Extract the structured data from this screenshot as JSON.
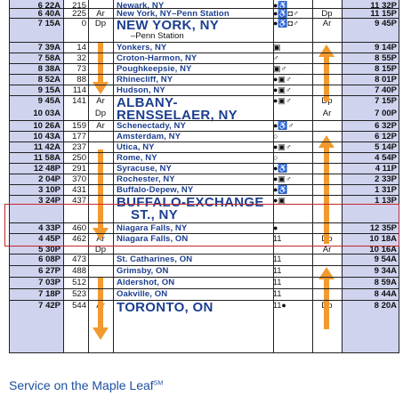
{
  "caption": {
    "text": "Service on the Maple Leaf",
    "mark": "SM"
  },
  "rows": [
    {
      "time_left": "6 22A",
      "mile": "215",
      "ad_left": "",
      "station": "Newark, NY",
      "sub": "",
      "svc": "●♿",
      "ad_right": "",
      "time_right": "11 32P",
      "h": 9
    },
    {
      "time_left": "6 40A",
      "mile": "225",
      "ad_left": "Ar",
      "station": "New York, NY–Penn Station",
      "sub": "",
      "svc": "●♿◘♂",
      "ad_right": "Dp",
      "time_right": "11 15P",
      "h": 11
    },
    {
      "time_left": "7 15A",
      "mile": "0",
      "ad_left": "Dp",
      "station": "NEW YORK, NY",
      "sub": "–Penn Station",
      "svc": "●♿◘♂",
      "ad_right": "Ar",
      "time_right": "9 45P",
      "h": 27,
      "big": true
    },
    {
      "time_left": "7 39A",
      "mile": "14",
      "ad_left": "",
      "station": "Yonkers, NY",
      "sub": "",
      "svc": "▣",
      "ad_right": "",
      "time_right": "9 14P",
      "h": 12
    },
    {
      "time_left": "7 58A",
      "mile": "32",
      "ad_left": "",
      "station": "Croton-Harmon, NY",
      "sub": "",
      "svc": "♂",
      "ad_right": "",
      "time_right": "8 55P",
      "h": 12
    },
    {
      "time_left": "8 38A",
      "mile": "73",
      "ad_left": "",
      "station": "Poughkeepsie, NY",
      "sub": "",
      "svc": "▣♂",
      "ad_right": "",
      "time_right": "8 15P",
      "h": 12
    },
    {
      "time_left": "8 52A",
      "mile": "88",
      "ad_left": "",
      "station": "Rhinecliff, NY",
      "sub": "",
      "svc": "●▣♂",
      "ad_right": "",
      "time_right": "8 01P",
      "h": 12
    },
    {
      "time_left": "9 15A",
      "mile": "114",
      "ad_left": "",
      "station": "Hudson, NY",
      "sub": "",
      "svc": "●▣♂",
      "ad_right": "",
      "time_right": "7 40P",
      "h": 12
    },
    {
      "time_left": "9 45A",
      "mile": "141",
      "ad_left": "Ar",
      "station": "ALBANY-",
      "sub": "",
      "svc": "●▣♂",
      "ad_right": "Dp",
      "time_right": "7 15P",
      "h": 14,
      "big": true
    },
    {
      "time_left": "10 03A",
      "mile": "",
      "ad_left": "Dp",
      "station": "RENSSELAER, NY",
      "sub": "",
      "svc": "",
      "ad_right": "Ar",
      "time_right": "7 00P",
      "h": 14,
      "big": true
    },
    {
      "time_left": "10 26A",
      "mile": "159",
      "ad_left": "Ar",
      "station": "Schenectady, NY",
      "sub": "",
      "svc": "●♿♂",
      "ad_right": "",
      "time_right": "6 32P",
      "h": 12
    },
    {
      "time_left": "10 43A",
      "mile": "177",
      "ad_left": "",
      "station": "Amsterdam, NY",
      "sub": "",
      "svc": "○",
      "ad_right": "",
      "time_right": "6 12P",
      "h": 12
    },
    {
      "time_left": "11 42A",
      "mile": "237",
      "ad_left": "",
      "station": "Utica, NY",
      "sub": "",
      "svc": "●▣♂",
      "ad_right": "",
      "time_right": "5 14P",
      "h": 12
    },
    {
      "time_left": "11 58A",
      "mile": "250",
      "ad_left": "",
      "station": "Rome, NY",
      "sub": "",
      "svc": "○",
      "ad_right": "",
      "time_right": "4 54P",
      "h": 12
    },
    {
      "time_left": "12 48P",
      "mile": "291",
      "ad_left": "",
      "station": "Syracuse, NY",
      "sub": "",
      "svc": "●♿",
      "ad_right": "",
      "time_right": "4 11P",
      "h": 12
    },
    {
      "time_left": "2 04P",
      "mile": "370",
      "ad_left": "",
      "station": "Rochester, NY",
      "sub": "",
      "svc": "●▣♂",
      "ad_right": "",
      "time_right": "2 33P",
      "h": 12
    },
    {
      "time_left": "3 10P",
      "mile": "431",
      "ad_left": "",
      "station": "Buffalo-Depew, NY",
      "sub": "",
      "svc": "●♿",
      "ad_right": "",
      "time_right": "1 31P",
      "h": 12
    },
    {
      "time_left": "3 24P",
      "mile": "437",
      "ad_left": "",
      "station": "BUFFALO-EXCHANGE",
      "sub": "ST., NY",
      "svc": "●▣",
      "ad_right": "",
      "time_right": "1 13P",
      "h": 31,
      "big": true
    },
    {
      "time_left": "4 33P",
      "mile": "460",
      "ad_left": "",
      "station": "Niagara Falls, NY",
      "sub": "",
      "svc": "●",
      "ad_right": "",
      "time_right": "12 35P",
      "h": 12
    },
    {
      "time_left": "4 45P",
      "mile": "462",
      "ad_left": "Ar",
      "station": "Niagara Falls, ON",
      "sub": "",
      "svc": "11",
      "ad_right": "Dp",
      "time_right": "10 18A",
      "h": 12
    },
    {
      "time_left": "5 30P",
      "mile": "",
      "ad_left": "Dp",
      "station": "",
      "sub": "",
      "svc": "",
      "ad_right": "Ar",
      "time_right": "10 16A",
      "h": 11
    },
    {
      "time_left": "6 08P",
      "mile": "473",
      "ad_left": "",
      "station": "St. Catharines, ON",
      "sub": "",
      "svc": "11",
      "ad_right": "",
      "time_right": "9 54A",
      "h": 13
    },
    {
      "time_left": "6 27P",
      "mile": "488",
      "ad_left": "",
      "station": "Grimsby, ON",
      "sub": "",
      "svc": "11",
      "ad_right": "",
      "time_right": "9 34A",
      "h": 13
    },
    {
      "time_left": "7 03P",
      "mile": "512",
      "ad_left": "",
      "station": "Aldershot, ON",
      "sub": "",
      "svc": "11",
      "ad_right": "",
      "time_right": "8 59A",
      "h": 13
    },
    {
      "time_left": "7 18P",
      "mile": "523",
      "ad_left": "",
      "station": "Oakville, ON",
      "sub": "",
      "svc": "11",
      "ad_right": "",
      "time_right": "8 44A",
      "h": 13
    },
    {
      "time_left": "7 42P",
      "mile": "544",
      "ad_left": "Ar",
      "station": "TORONTO, ON",
      "sub": "",
      "svc": "11●",
      "ad_right": "Dp",
      "time_right": "8 20A",
      "h": 21,
      "big": true
    }
  ],
  "colors": {
    "band": "#cfd3ee",
    "station_text": "#1c3f8f",
    "arrow": "#f29a2e",
    "highlight": "#c0272d",
    "caption": "#1c4f9e"
  }
}
